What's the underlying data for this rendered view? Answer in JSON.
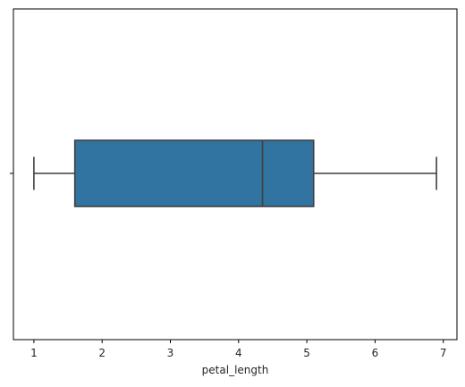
{
  "chart_data": {
    "type": "boxplot",
    "orientation": "horizontal",
    "xlabel": "petal_length",
    "ylabel": "",
    "xlim": [
      0.7,
      7.2
    ],
    "xticks": [
      "1",
      "2",
      "3",
      "4",
      "5",
      "6",
      "7"
    ],
    "grid": false,
    "box": {
      "whisker_low": 1.0,
      "q1": 1.6,
      "median": 4.35,
      "q3": 5.1,
      "whisker_high": 6.9,
      "fill_color": "#3274a1",
      "line_color": "#3f3f3f"
    }
  }
}
